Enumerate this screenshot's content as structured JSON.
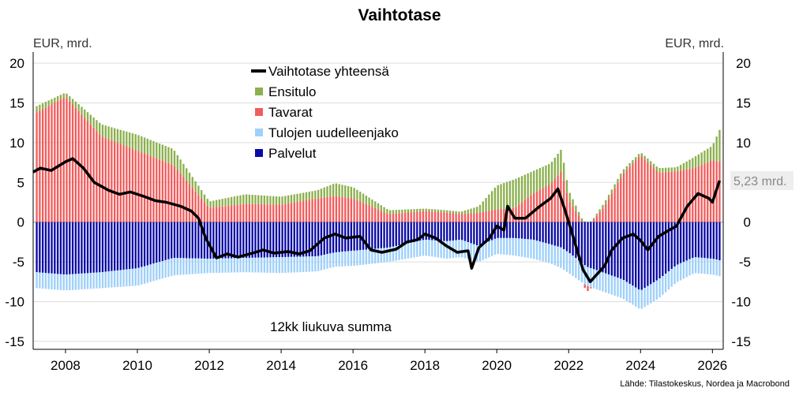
{
  "title": "Vaihtotase",
  "unit_left": "EUR, mrd.",
  "unit_right": "EUR, mrd.",
  "source": "Lähde: Tilastokeskus, Nordea ja Macrobond",
  "note": "12kk liukuva summa",
  "last_value_label": "5,23 mrd.",
  "colors": {
    "line": "#000000",
    "ensitulo": "#8cb04e",
    "tavarat": "#f25c5c",
    "tulojen": "#9fd0fa",
    "palvelut": "#0a0aa6"
  },
  "chart_data": {
    "type": "bar",
    "stacked": true,
    "x_range": [
      2007.1,
      2026.3
    ],
    "ylim": [
      -16,
      21
    ],
    "y_ticks": [
      -15,
      -10,
      -5,
      0,
      5,
      10,
      15,
      20
    ],
    "y_tick_labels": [
      "-15",
      "-10",
      "-5",
      "0",
      "5",
      "10",
      "15",
      "20"
    ],
    "x_ticks": [
      2008,
      2010,
      2012,
      2014,
      2016,
      2018,
      2020,
      2022,
      2024,
      2026
    ],
    "x_tick_labels": [
      "2008",
      "2010",
      "2012",
      "2014",
      "2016",
      "2018",
      "2020",
      "2022",
      "2024",
      "2026"
    ],
    "grid": "horizontal",
    "legend_position": "top-center",
    "series": [
      {
        "name": "Vaihtotase yhteensä",
        "kind": "line",
        "x": [
          2007.1,
          2007.3,
          2007.6,
          2008.0,
          2008.2,
          2008.5,
          2008.8,
          2009.2,
          2009.5,
          2009.8,
          2010.2,
          2010.5,
          2010.8,
          2011.2,
          2011.5,
          2011.7,
          2011.9,
          2012.2,
          2012.5,
          2012.8,
          2013.2,
          2013.5,
          2013.8,
          2014.2,
          2014.5,
          2014.8,
          2015.2,
          2015.5,
          2015.8,
          2016.2,
          2016.5,
          2016.8,
          2017.2,
          2017.5,
          2017.8,
          2018.0,
          2018.3,
          2018.6,
          2018.9,
          2019.2,
          2019.3,
          2019.5,
          2019.8,
          2020.0,
          2020.2,
          2020.3,
          2020.5,
          2020.8,
          2021.2,
          2021.5,
          2021.7,
          2021.9,
          2022.2,
          2022.4,
          2022.6,
          2022.8,
          2023.0,
          2023.2,
          2023.5,
          2023.8,
          2024.0,
          2024.2,
          2024.5,
          2024.8,
          2025.0,
          2025.3,
          2025.6,
          2025.9,
          2026.0,
          2026.2
        ],
        "values": [
          6.3,
          6.8,
          6.5,
          7.6,
          8.0,
          6.8,
          5.0,
          4.0,
          3.5,
          3.8,
          3.2,
          2.7,
          2.5,
          2.0,
          1.4,
          0.5,
          -2.0,
          -4.5,
          -4.0,
          -4.4,
          -3.9,
          -3.5,
          -3.9,
          -3.7,
          -4.0,
          -3.6,
          -2.0,
          -1.5,
          -2.0,
          -1.8,
          -3.5,
          -3.8,
          -3.4,
          -2.5,
          -2.2,
          -1.5,
          -2.0,
          -3.0,
          -3.8,
          -3.6,
          -5.8,
          -3.2,
          -2.0,
          -0.5,
          -1.0,
          2.0,
          0.5,
          0.5,
          2.0,
          3.0,
          4.2,
          1.5,
          -3.0,
          -6.0,
          -7.5,
          -6.5,
          -5.5,
          -3.5,
          -2.0,
          -1.5,
          -2.3,
          -3.5,
          -1.8,
          -1.0,
          -0.5,
          2.0,
          3.6,
          3.0,
          2.5,
          5.23
        ]
      },
      {
        "name": "Ensitulo",
        "kind": "stacked-bar",
        "x": [
          2007.2,
          2008.0,
          2009.0,
          2010.0,
          2011.0,
          2012.0,
          2013.0,
          2014.0,
          2015.0,
          2015.5,
          2016.0,
          2017.0,
          2018.0,
          2018.6,
          2019.0,
          2019.5,
          2020.0,
          2020.5,
          2021.0,
          2021.5,
          2021.8,
          2022.0,
          2022.5,
          2023.0,
          2023.5,
          2024.0,
          2024.5,
          2025.0,
          2025.5,
          2026.0,
          2026.2
        ],
        "values": [
          0.8,
          0.5,
          1.5,
          2.0,
          2.0,
          0.8,
          1.2,
          1.0,
          1.0,
          1.6,
          1.4,
          0.5,
          0.3,
          0.3,
          0.3,
          0.8,
          3.0,
          3.6,
          2.8,
          2.6,
          2.8,
          1.2,
          0.0,
          0.5,
          0.5,
          0.4,
          0.6,
          0.5,
          1.4,
          1.8,
          4.0
        ]
      },
      {
        "name": "Tavarat",
        "kind": "stacked-bar",
        "x": [
          2007.2,
          2008.0,
          2009.0,
          2010.0,
          2011.0,
          2012.0,
          2013.0,
          2014.0,
          2015.0,
          2015.5,
          2016.0,
          2017.0,
          2018.0,
          2018.6,
          2019.0,
          2019.5,
          2020.0,
          2020.5,
          2021.0,
          2021.5,
          2021.8,
          2022.0,
          2022.5,
          2023.0,
          2023.5,
          2024.0,
          2024.5,
          2025.0,
          2025.5,
          2026.0,
          2026.2
        ],
        "values": [
          13.8,
          15.8,
          10.8,
          9.0,
          7.2,
          1.8,
          2.3,
          2.2,
          3.0,
          3.3,
          3.0,
          1.0,
          1.4,
          1.2,
          1.0,
          1.2,
          1.6,
          1.8,
          3.6,
          4.8,
          6.4,
          2.8,
          -0.8,
          2.0,
          6.0,
          8.4,
          6.2,
          6.4,
          6.8,
          7.8,
          7.6
        ]
      },
      {
        "name": "Tulojen uudelleenjako",
        "kind": "stacked-bar",
        "x": [
          2007.2,
          2008.0,
          2009.0,
          2010.0,
          2011.0,
          2012.0,
          2013.0,
          2014.0,
          2015.0,
          2015.5,
          2016.0,
          2017.0,
          2018.0,
          2018.6,
          2019.0,
          2019.5,
          2020.0,
          2020.5,
          2021.0,
          2021.5,
          2021.8,
          2022.0,
          2022.5,
          2023.0,
          2023.5,
          2024.0,
          2024.5,
          2025.0,
          2025.5,
          2026.0,
          2026.2
        ],
        "values": [
          -2.0,
          -2.0,
          -2.0,
          -2.2,
          -2.2,
          -1.8,
          -1.8,
          -2.0,
          -1.9,
          -1.8,
          -1.9,
          -1.8,
          -2.0,
          -2.2,
          -2.2,
          -2.0,
          -2.0,
          -2.2,
          -2.4,
          -2.4,
          -2.6,
          -2.6,
          -2.4,
          -2.4,
          -2.4,
          -2.4,
          -2.4,
          -2.2,
          -2.0,
          -2.0,
          -2.0
        ]
      },
      {
        "name": "Palvelut",
        "kind": "stacked-bar",
        "x": [
          2007.2,
          2008.0,
          2009.0,
          2010.0,
          2011.0,
          2012.0,
          2013.0,
          2014.0,
          2015.0,
          2015.5,
          2016.0,
          2017.0,
          2018.0,
          2018.6,
          2019.0,
          2019.5,
          2020.0,
          2020.5,
          2021.0,
          2021.5,
          2021.8,
          2022.0,
          2022.5,
          2023.0,
          2023.5,
          2024.0,
          2024.5,
          2025.0,
          2025.5,
          2026.0,
          2026.2
        ],
        "values": [
          -6.3,
          -6.6,
          -6.3,
          -5.8,
          -4.5,
          -4.6,
          -4.5,
          -4.4,
          -4.3,
          -3.8,
          -3.6,
          -3.2,
          -2.2,
          -2.4,
          -2.2,
          -3.0,
          -2.0,
          -2.0,
          -2.2,
          -2.8,
          -3.2,
          -3.8,
          -5.6,
          -6.4,
          -7.2,
          -8.6,
          -7.2,
          -5.4,
          -4.4,
          -4.6,
          -4.8
        ]
      }
    ]
  }
}
